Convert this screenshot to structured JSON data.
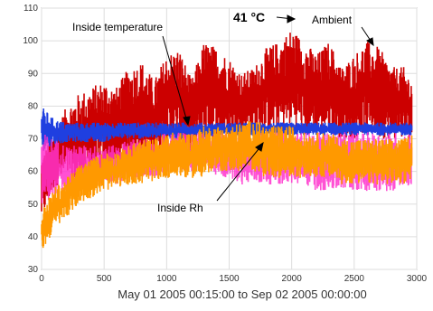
{
  "chart_data": {
    "type": "line",
    "xlabel": "May 01 2005 00:15:00 to Sep 02 2005 00:00:00",
    "ylabel": "",
    "title": "",
    "xlim": [
      0,
      3000
    ],
    "ylim": [
      30,
      110
    ],
    "x_ticks": [
      0,
      500,
      1000,
      1500,
      2000,
      2500,
      3000
    ],
    "y_ticks": [
      30,
      40,
      50,
      60,
      70,
      80,
      90,
      100,
      110
    ],
    "grid": true,
    "annotations": [
      {
        "text": "Inside temperature",
        "bold": false
      },
      {
        "text": "41 °C",
        "bold": true
      },
      {
        "text": "Ambient",
        "bold": false
      },
      {
        "text": "Inside Rh",
        "bold": false
      }
    ],
    "series": [
      {
        "color": "#cc0000",
        "x": [
          0,
          100,
          200,
          300,
          400,
          500,
          600,
          700,
          800,
          900,
          1000,
          1100,
          1200,
          1300,
          1400,
          1500,
          1600,
          1700,
          1800,
          1900,
          2000,
          2100,
          2200,
          2300,
          2400,
          2500,
          2600,
          2700,
          2800,
          2900,
          2960
        ],
        "y_high": [
          65,
          72,
          80,
          84,
          86,
          88,
          86,
          92,
          94,
          88,
          96,
          98,
          88,
          100,
          98,
          95,
          90,
          92,
          98,
          100,
          104,
          100,
          96,
          100,
          92,
          96,
          100,
          98,
          92,
          92,
          88
        ],
        "y_low": [
          45,
          55,
          58,
          56,
          58,
          60,
          58,
          62,
          64,
          64,
          68,
          68,
          66,
          70,
          70,
          70,
          72,
          72,
          72,
          72,
          74,
          72,
          72,
          72,
          70,
          70,
          72,
          70,
          70,
          70,
          70
        ]
      },
      {
        "color": "#1f3fe0",
        "x": [
          0,
          100,
          200,
          300,
          400,
          500,
          600,
          700,
          800,
          900,
          1000,
          1100,
          1200,
          1300,
          1400,
          1500,
          1600,
          1700,
          1800,
          1900,
          2000,
          2100,
          2200,
          2300,
          2400,
          2500,
          2600,
          2700,
          2800,
          2900,
          2960
        ],
        "y_high": [
          80,
          76,
          75,
          75,
          75,
          75,
          75,
          75,
          75,
          75,
          75,
          75,
          75,
          75,
          75,
          75,
          75,
          75,
          75,
          75,
          75,
          75,
          75,
          75,
          75,
          75,
          75,
          75,
          75,
          75,
          75
        ],
        "y_low": [
          66,
          68,
          69,
          69,
          69,
          69,
          70,
          70,
          70,
          70,
          70,
          70,
          70,
          70,
          71,
          71,
          71,
          71,
          71,
          71,
          71,
          71,
          71,
          71,
          71,
          71,
          71,
          71,
          71,
          71,
          71
        ]
      },
      {
        "color": "#ff33cc",
        "x": [
          0,
          100,
          200,
          300,
          400,
          500,
          600,
          700,
          800,
          900,
          1000,
          1100,
          1200,
          1300,
          1400,
          1500,
          1600,
          1700,
          1800,
          1900,
          2000,
          2100,
          2200,
          2300,
          2400,
          2500,
          2600,
          2700,
          2800,
          2900,
          2960
        ],
        "y_high": [
          72,
          70,
          68,
          68,
          68,
          68,
          68,
          70,
          70,
          70,
          72,
          72,
          72,
          72,
          72,
          72,
          72,
          72,
          72,
          72,
          72,
          72,
          72,
          72,
          72,
          72,
          72,
          72,
          72,
          72,
          72
        ],
        "y_low": [
          50,
          52,
          54,
          55,
          56,
          56,
          56,
          58,
          58,
          58,
          60,
          60,
          60,
          60,
          58,
          58,
          56,
          56,
          56,
          56,
          56,
          56,
          54,
          54,
          54,
          54,
          54,
          54,
          54,
          54,
          56
        ]
      },
      {
        "color": "#ff9900",
        "x": [
          0,
          100,
          200,
          300,
          400,
          500,
          600,
          700,
          800,
          900,
          1000,
          1100,
          1200,
          1300,
          1400,
          1500,
          1600,
          1700,
          1800,
          1900,
          2000,
          2100,
          2200,
          2300,
          2400,
          2500,
          2600,
          2700,
          2800,
          2900,
          2960
        ],
        "y_high": [
          48,
          55,
          58,
          62,
          64,
          66,
          66,
          68,
          70,
          70,
          72,
          72,
          72,
          74,
          74,
          74,
          75,
          76,
          74,
          74,
          74,
          72,
          72,
          72,
          70,
          70,
          70,
          70,
          70,
          70,
          72
        ],
        "y_low": [
          35,
          42,
          46,
          50,
          52,
          54,
          55,
          56,
          56,
          57,
          58,
          58,
          58,
          58,
          60,
          60,
          60,
          60,
          58,
          58,
          58,
          58,
          58,
          58,
          56,
          56,
          56,
          56,
          56,
          56,
          58
        ]
      }
    ]
  }
}
